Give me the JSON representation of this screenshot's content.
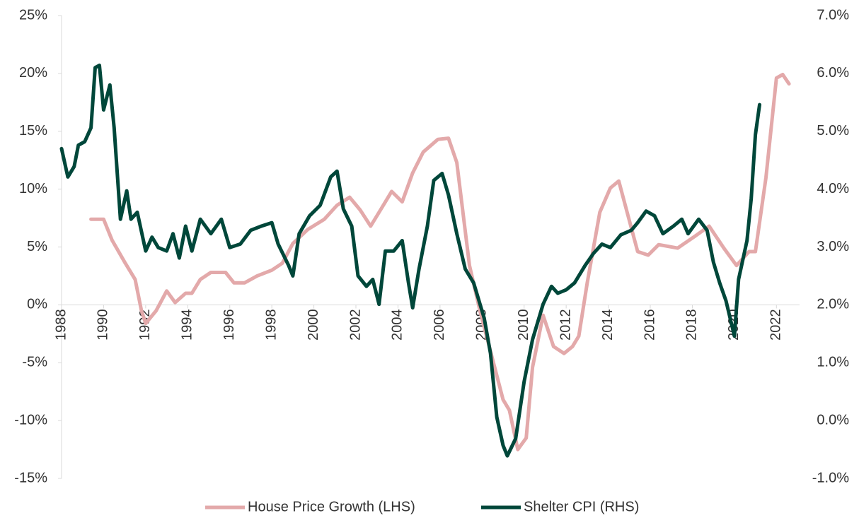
{
  "chart_data": {
    "type": "line",
    "xlim": [
      1988,
      2023.1
    ],
    "xticks": [
      1988,
      1990,
      1992,
      1994,
      1996,
      1998,
      2000,
      2002,
      2004,
      2006,
      2008,
      2010,
      2012,
      2014,
      2016,
      2018,
      2020,
      2022
    ],
    "ylim": [
      -15,
      25
    ],
    "yticks": [
      {
        "value": 25,
        "label": "25%"
      },
      {
        "value": 20,
        "label": "20%"
      },
      {
        "value": 15,
        "label": "15%"
      },
      {
        "value": 10,
        "label": "10%"
      },
      {
        "value": 5,
        "label": "5%"
      },
      {
        "value": 0,
        "label": "0%"
      },
      {
        "value": -5,
        "label": "-5%"
      },
      {
        "value": -10,
        "label": "-10%"
      },
      {
        "value": -15,
        "label": "-15%"
      }
    ],
    "y2lim": [
      -1,
      7
    ],
    "y2ticks": [
      {
        "value": 7,
        "label": "7.0%"
      },
      {
        "value": 6,
        "label": "6.0%"
      },
      {
        "value": 5,
        "label": "5.0%"
      },
      {
        "value": 4,
        "label": "4.0%"
      },
      {
        "value": 3,
        "label": "3.0%"
      },
      {
        "value": 2,
        "label": "2.0%"
      },
      {
        "value": 1,
        "label": "1.0%"
      },
      {
        "value": 0,
        "label": "0.0%"
      },
      {
        "value": -1,
        "label": "-1.0%"
      }
    ],
    "legend": "bottom",
    "series": [
      {
        "name": "House Price Growth (LHS)",
        "color": "#e3a9aa",
        "axis": "y",
        "x": [
          1989.4,
          1990.0,
          1990.4,
          1991.0,
          1991.5,
          1991.8,
          1992.0,
          1992.5,
          1993.0,
          1993.4,
          1993.9,
          1994.2,
          1994.6,
          1995.1,
          1995.8,
          1996.2,
          1996.7,
          1997.3,
          1998.0,
          1998.5,
          1999.0,
          1999.7,
          2000.5,
          2001.1,
          2001.7,
          2002.2,
          2002.7,
          2003.2,
          2003.7,
          2004.2,
          2004.7,
          2005.2,
          2005.9,
          2006.4,
          2006.8,
          2007.4,
          2007.9,
          2008.6,
          2009.0,
          2009.3,
          2009.7,
          2010.1,
          2010.4,
          2010.9,
          2011.4,
          2011.9,
          2012.3,
          2012.6,
          2013.0,
          2013.6,
          2014.1,
          2014.5,
          2014.9,
          2015.4,
          2015.9,
          2016.4,
          2017.3,
          2018.1,
          2018.8,
          2019.5,
          2020.1,
          2020.7,
          2021.0,
          2021.5,
          2022.0,
          2022.3,
          2022.6
        ],
        "values": [
          7.4,
          7.4,
          5.6,
          3.7,
          2.2,
          -0.5,
          -1.6,
          -0.5,
          1.2,
          0.2,
          1.0,
          1.0,
          2.2,
          2.8,
          2.8,
          1.9,
          1.9,
          2.5,
          3.0,
          3.6,
          5.3,
          6.5,
          7.4,
          8.6,
          9.3,
          8.2,
          6.8,
          8.3,
          9.8,
          8.9,
          11.4,
          13.2,
          14.3,
          14.4,
          12.3,
          3.4,
          -0.5,
          -5.4,
          -8.2,
          -9.1,
          -12.5,
          -11.5,
          -5.4,
          -0.9,
          -3.6,
          -4.2,
          -3.6,
          -2.7,
          1.9,
          8.0,
          10.1,
          10.7,
          8.0,
          4.6,
          4.3,
          5.2,
          4.9,
          5.9,
          6.8,
          4.9,
          3.4,
          4.6,
          4.6,
          11.0,
          19.6,
          19.9,
          19.1
        ]
      },
      {
        "name": "Shelter CPI (RHS)",
        "color": "#00473a",
        "axis": "y2",
        "x": [
          1988.0,
          1988.3,
          1988.6,
          1988.8,
          1989.1,
          1989.4,
          1989.6,
          1989.8,
          1990.0,
          1990.3,
          1990.5,
          1990.8,
          1991.1,
          1991.3,
          1991.6,
          1992.0,
          1992.3,
          1992.6,
          1993.0,
          1993.3,
          1993.6,
          1993.9,
          1994.2,
          1994.6,
          1995.1,
          1995.6,
          1996.0,
          1996.5,
          1997.0,
          1997.5,
          1998.0,
          1998.3,
          1998.8,
          1999.0,
          1999.3,
          1999.8,
          2000.3,
          2000.8,
          2001.1,
          2001.4,
          2001.8,
          2002.1,
          2002.5,
          2002.8,
          2003.1,
          2003.4,
          2003.8,
          2004.2,
          2004.5,
          2004.7,
          2005.0,
          2005.4,
          2005.7,
          2006.1,
          2006.4,
          2006.8,
          2007.2,
          2007.6,
          2008.1,
          2008.4,
          2008.7,
          2009.0,
          2009.2,
          2009.6,
          2010.0,
          2010.4,
          2010.9,
          2011.3,
          2011.6,
          2012.0,
          2012.4,
          2012.9,
          2013.3,
          2013.7,
          2014.1,
          2014.6,
          2015.1,
          2015.4,
          2015.8,
          2016.2,
          2016.6,
          2017.1,
          2017.5,
          2017.8,
          2018.3,
          2018.7,
          2019.0,
          2019.3,
          2019.6,
          2020.0,
          2020.2,
          2020.6,
          2020.8,
          2021.0,
          2021.2
        ],
        "values": [
          4.7,
          4.21,
          4.39,
          4.76,
          4.82,
          5.06,
          6.1,
          6.14,
          5.37,
          5.8,
          5.06,
          3.48,
          3.97,
          3.48,
          3.6,
          2.93,
          3.17,
          2.99,
          2.93,
          3.23,
          2.81,
          3.36,
          2.93,
          3.48,
          3.23,
          3.48,
          2.99,
          3.05,
          3.29,
          3.36,
          3.42,
          3.05,
          2.68,
          2.5,
          3.23,
          3.54,
          3.72,
          4.21,
          4.31,
          3.66,
          3.36,
          2.5,
          2.32,
          2.44,
          2.01,
          2.93,
          2.93,
          3.11,
          2.38,
          1.95,
          2.62,
          3.36,
          4.15,
          4.27,
          3.9,
          3.23,
          2.62,
          2.38,
          1.77,
          1.16,
          0.06,
          -0.43,
          -0.61,
          -0.31,
          0.67,
          1.4,
          2.01,
          2.32,
          2.2,
          2.26,
          2.38,
          2.68,
          2.89,
          3.05,
          2.99,
          3.21,
          3.29,
          3.42,
          3.62,
          3.54,
          3.23,
          3.36,
          3.48,
          3.23,
          3.48,
          3.29,
          2.74,
          2.38,
          2.07,
          1.46,
          2.44,
          3.11,
          3.84,
          4.94,
          5.46
        ]
      }
    ]
  }
}
